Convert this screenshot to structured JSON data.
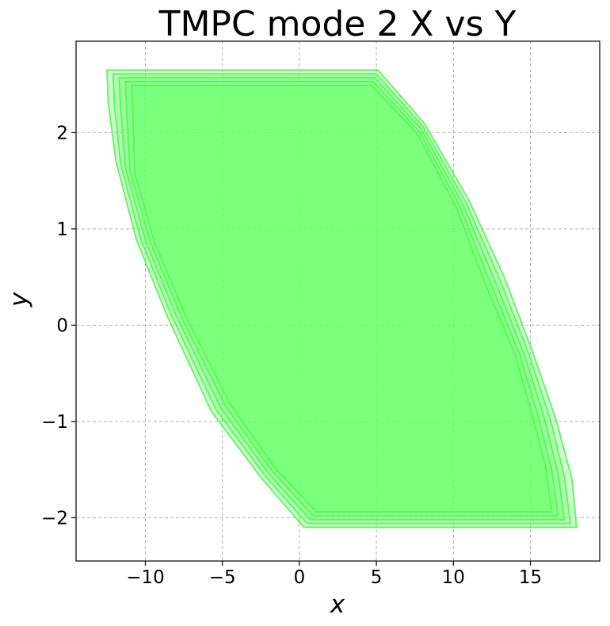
{
  "chart_data": {
    "type": "area",
    "title": "TMPC mode 2 X vs Y",
    "xlabel": "x",
    "ylabel": "y",
    "xlim": [
      -14.5,
      19.5
    ],
    "ylim": [
      -2.45,
      2.95
    ],
    "xticks": [
      -10,
      -5,
      0,
      5,
      10,
      15
    ],
    "xtick_labels": [
      "−10",
      "−5",
      "0",
      "5",
      "10",
      "15"
    ],
    "yticks": [
      -2,
      -1,
      0,
      1,
      2
    ],
    "ytick_labels": [
      "−2",
      "−1",
      "0",
      "1",
      "2"
    ],
    "grid": true,
    "fill_color": "#66ff66",
    "edge_color": "#5cf25c",
    "regions": [
      {
        "polygon": [
          [
            -12.5,
            2.65
          ],
          [
            5.1,
            2.65
          ],
          [
            8.1,
            2.1
          ],
          [
            11.0,
            1.3
          ],
          [
            13.3,
            0.5
          ],
          [
            15.2,
            -0.3
          ],
          [
            16.7,
            -1.0
          ],
          [
            17.7,
            -1.6
          ],
          [
            18.0,
            -2.1
          ],
          [
            0.3,
            -2.1
          ],
          [
            -2.4,
            -1.6
          ],
          [
            -5.7,
            -0.9
          ],
          [
            -8.6,
            0.1
          ],
          [
            -10.6,
            0.9
          ],
          [
            -11.9,
            1.7
          ],
          [
            -12.4,
            2.3
          ]
        ]
      },
      {
        "polygon": [
          [
            -12.1,
            2.61
          ],
          [
            5.0,
            2.61
          ],
          [
            8.0,
            2.07
          ],
          [
            10.8,
            1.28
          ],
          [
            13.0,
            0.48
          ],
          [
            14.9,
            -0.3
          ],
          [
            16.3,
            -0.98
          ],
          [
            17.2,
            -1.57
          ],
          [
            17.6,
            -2.06
          ],
          [
            0.5,
            -2.06
          ],
          [
            -2.2,
            -1.57
          ],
          [
            -5.4,
            -0.88
          ],
          [
            -8.3,
            0.1
          ],
          [
            -10.3,
            0.89
          ],
          [
            -11.6,
            1.67
          ],
          [
            -12.0,
            2.27
          ]
        ]
      },
      {
        "polygon": [
          [
            -11.7,
            2.57
          ],
          [
            4.9,
            2.57
          ],
          [
            7.9,
            2.04
          ],
          [
            10.6,
            1.26
          ],
          [
            12.7,
            0.46
          ],
          [
            14.6,
            -0.3
          ],
          [
            15.9,
            -0.96
          ],
          [
            16.8,
            -1.54
          ],
          [
            17.2,
            -2.02
          ],
          [
            0.7,
            -2.02
          ],
          [
            -2.0,
            -1.54
          ],
          [
            -5.1,
            -0.86
          ],
          [
            -8.0,
            0.1
          ],
          [
            -10.0,
            0.88
          ],
          [
            -11.3,
            1.64
          ],
          [
            -11.6,
            2.24
          ]
        ]
      },
      {
        "polygon": [
          [
            -11.3,
            2.53
          ],
          [
            4.8,
            2.53
          ],
          [
            7.8,
            2.01
          ],
          [
            10.4,
            1.24
          ],
          [
            12.4,
            0.44
          ],
          [
            14.3,
            -0.3
          ],
          [
            15.5,
            -0.94
          ],
          [
            16.4,
            -1.51
          ],
          [
            16.8,
            -1.98
          ],
          [
            0.9,
            -1.98
          ],
          [
            -1.8,
            -1.51
          ],
          [
            -4.8,
            -0.84
          ],
          [
            -7.7,
            0.1
          ],
          [
            -9.7,
            0.87
          ],
          [
            -11.0,
            1.61
          ],
          [
            -11.2,
            2.21
          ]
        ]
      },
      {
        "polygon": [
          [
            -10.9,
            2.49
          ],
          [
            4.7,
            2.49
          ],
          [
            7.7,
            1.98
          ],
          [
            10.2,
            1.22
          ],
          [
            12.1,
            0.42
          ],
          [
            14.0,
            -0.3
          ],
          [
            15.1,
            -0.92
          ],
          [
            16.0,
            -1.48
          ],
          [
            16.4,
            -1.94
          ],
          [
            1.1,
            -1.94
          ],
          [
            -1.6,
            -1.48
          ],
          [
            -4.5,
            -0.82
          ],
          [
            -7.4,
            0.1
          ],
          [
            -9.4,
            0.86
          ],
          [
            -10.7,
            1.58
          ],
          [
            -10.8,
            2.18
          ]
        ]
      }
    ]
  }
}
